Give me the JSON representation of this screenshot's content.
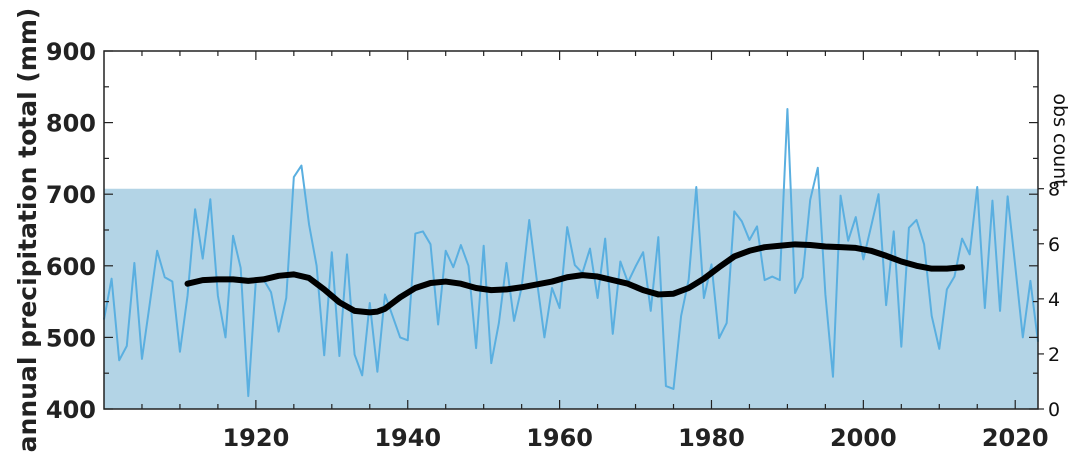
{
  "chart_data": {
    "type": "line",
    "title": "",
    "xlabel": "",
    "ylabel": "annual precipitation total (mm)",
    "y2label": "obs count",
    "xlim": [
      1900,
      2023
    ],
    "ylim": [
      400,
      900
    ],
    "y2lim": [
      0,
      13
    ],
    "xticks": [
      1920,
      1940,
      1960,
      1980,
      2000,
      2020
    ],
    "yticks": [
      400,
      500,
      600,
      700,
      800,
      900
    ],
    "y2ticks": [
      0,
      2,
      4,
      6,
      8
    ],
    "colors": {
      "annual": "#5aafe0",
      "smooth": "#000000",
      "count": "#b3d4e6"
    },
    "series": [
      {
        "type": "area",
        "axis": "y2",
        "x": [
          1900,
          2023
        ],
        "values": [
          8,
          8
        ]
      },
      {
        "type": "line",
        "axis": "y",
        "x": [
          1900,
          1901,
          1902,
          1903,
          1904,
          1905,
          1906,
          1907,
          1908,
          1909,
          1910,
          1911,
          1912,
          1913,
          1914,
          1915,
          1916,
          1917,
          1918,
          1919,
          1920,
          1921,
          1922,
          1923,
          1924,
          1925,
          1926,
          1927,
          1928,
          1929,
          1930,
          1931,
          1932,
          1933,
          1934,
          1935,
          1936,
          1937,
          1938,
          1939,
          1940,
          1941,
          1942,
          1943,
          1944,
          1945,
          1946,
          1947,
          1948,
          1949,
          1950,
          1951,
          1952,
          1953,
          1954,
          1955,
          1956,
          1957,
          1958,
          1959,
          1960,
          1961,
          1962,
          1963,
          1964,
          1965,
          1966,
          1967,
          1968,
          1969,
          1970,
          1971,
          1972,
          1973,
          1974,
          1975,
          1976,
          1977,
          1978,
          1979,
          1980,
          1981,
          1982,
          1983,
          1984,
          1985,
          1986,
          1987,
          1988,
          1989,
          1990,
          1991,
          1992,
          1993,
          1994,
          1995,
          1996,
          1997,
          1998,
          1999,
          2000,
          2001,
          2002,
          2003,
          2004,
          2005,
          2006,
          2007,
          2008,
          2009,
          2010,
          2011,
          2012,
          2013,
          2014,
          2015,
          2016,
          2017,
          2018,
          2019,
          2020,
          2021,
          2022,
          2023
        ],
        "values": [
          525,
          582,
          468,
          488,
          604,
          470,
          545,
          621,
          584,
          578,
          480,
          558,
          679,
          610,
          693,
          558,
          500,
          642,
          597,
          418,
          580,
          581,
          563,
          508,
          555,
          724,
          740,
          658,
          600,
          475,
          619,
          474,
          616,
          476,
          447,
          548,
          452,
          560,
          530,
          500,
          496,
          645,
          648,
          630,
          518,
          621,
          598,
          629,
          600,
          485,
          628,
          464,
          520,
          604,
          523,
          570,
          664,
          580,
          500,
          569,
          541,
          654,
          601,
          590,
          624,
          555,
          638,
          505,
          606,
          577,
          599,
          619,
          537,
          640,
          432,
          428,
          530,
          581,
          710,
          555,
          602,
          499,
          520,
          676,
          662,
          636,
          655,
          580,
          585,
          580,
          819,
          562,
          584,
          692,
          737,
          560,
          445,
          698,
          635,
          668,
          609,
          654,
          700,
          545,
          648,
          487,
          653,
          664,
          630,
          530,
          484,
          567,
          585,
          638,
          616,
          710,
          541,
          691,
          537,
          697,
          600,
          500,
          579,
          494
        ]
      },
      {
        "type": "line",
        "axis": "y",
        "name": "",
        "x": [
          1911,
          1913,
          1915,
          1917,
          1919,
          1921,
          1923,
          1925,
          1927,
          1929,
          1931,
          1933,
          1935,
          1936,
          1937,
          1939,
          1941,
          1943,
          1945,
          1947,
          1949,
          1951,
          1953,
          1955,
          1957,
          1959,
          1961,
          1963,
          1965,
          1967,
          1969,
          1971,
          1973,
          1975,
          1977,
          1979,
          1981,
          1983,
          1985,
          1987,
          1989,
          1991,
          1993,
          1995,
          1997,
          1999,
          2001,
          2003,
          2005,
          2007,
          2009,
          2011,
          2013
        ],
        "values": [
          575,
          580,
          581,
          581,
          579,
          581,
          586,
          588,
          583,
          567,
          549,
          537,
          535,
          536,
          540,
          556,
          569,
          576,
          578,
          575,
          569,
          566,
          567,
          570,
          574,
          578,
          584,
          587,
          585,
          580,
          575,
          566,
          560,
          561,
          569,
          582,
          598,
          613,
          621,
          626,
          628,
          630,
          629,
          627,
          626,
          625,
          621,
          614,
          606,
          600,
          596,
          596,
          598
        ]
      }
    ]
  }
}
